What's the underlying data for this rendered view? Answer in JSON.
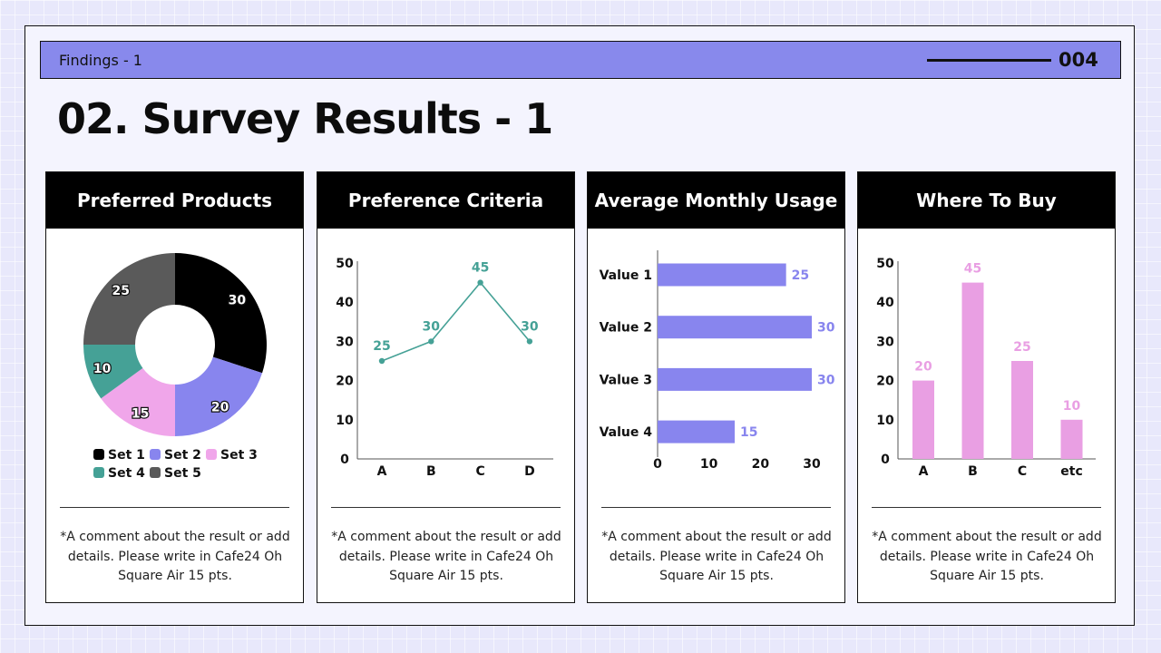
{
  "header": {
    "section_label": "Findings - 1",
    "page_number": "004"
  },
  "title": "02. Survey Results - 1",
  "colors": {
    "accent": "#8889ec",
    "teal": "#45a196",
    "pink": "#e99fe3",
    "purple": "#8885ee",
    "gray": "#5a5a5a",
    "black": "#000000"
  },
  "comment": "*A comment about the result or add details. Please write in Cafe24 Oh Square Air 15 pts.",
  "chart_data": [
    {
      "type": "pie",
      "title": "Preferred Products",
      "categories": [
        "Set 1",
        "Set 2",
        "Set 3",
        "Set 4",
        "Set 5"
      ],
      "values": [
        30,
        20,
        15,
        10,
        25
      ],
      "colors": [
        "#000000",
        "#8885ee",
        "#f0a6ea",
        "#45a196",
        "#5a5a5a"
      ],
      "legend": "bottom"
    },
    {
      "type": "line",
      "title": "Preference Criteria",
      "categories": [
        "A",
        "B",
        "C",
        "D"
      ],
      "values": [
        25,
        30,
        45,
        30
      ],
      "ylim": [
        0,
        50
      ],
      "yticks": [
        0,
        10,
        20,
        30,
        40,
        50
      ],
      "color": "#45a196"
    },
    {
      "type": "bar",
      "orientation": "horizontal",
      "title": "Average Monthly Usage",
      "categories": [
        "Value 1",
        "Value 2",
        "Value 3",
        "Value 4"
      ],
      "values": [
        25,
        30,
        30,
        15
      ],
      "xlim": [
        0,
        30
      ],
      "xticks": [
        0,
        10,
        20,
        30
      ],
      "color": "#8885ee"
    },
    {
      "type": "bar",
      "title": "Where To Buy",
      "categories": [
        "A",
        "B",
        "C",
        "etc"
      ],
      "values": [
        20,
        45,
        25,
        10
      ],
      "ylim": [
        0,
        50
      ],
      "yticks": [
        0,
        10,
        20,
        30,
        40,
        50
      ],
      "color": "#e99fe3"
    }
  ]
}
